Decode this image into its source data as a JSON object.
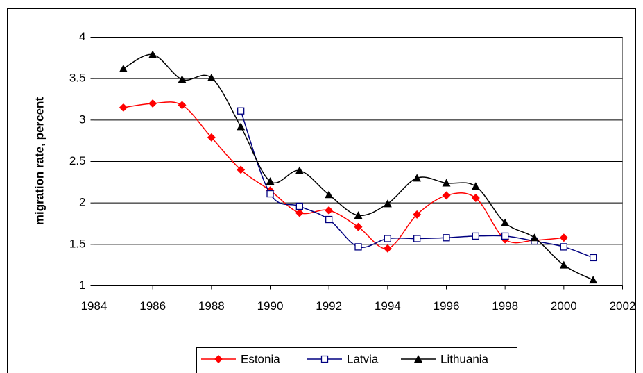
{
  "chart_data": {
    "type": "line",
    "y_label": "migration rate, percent",
    "x": [
      1985,
      1986,
      1987,
      1988,
      1989,
      1990,
      1991,
      1992,
      1993,
      1994,
      1995,
      1996,
      1997,
      1998,
      1999,
      2000,
      2001
    ],
    "series": [
      {
        "name": "Estonia",
        "color": "#ff0000",
        "marker": "diamond",
        "values": [
          3.15,
          3.2,
          3.18,
          2.79,
          2.4,
          2.15,
          1.88,
          1.91,
          1.71,
          1.45,
          1.86,
          2.09,
          2.06,
          1.56,
          1.55,
          1.58,
          null
        ]
      },
      {
        "name": "Latvia",
        "color": "#000080",
        "marker": "square",
        "values": [
          null,
          null,
          null,
          null,
          3.11,
          2.11,
          1.96,
          1.8,
          1.47,
          1.57,
          1.57,
          1.58,
          1.6,
          1.6,
          1.54,
          1.47,
          1.34
        ]
      },
      {
        "name": "Lithuania",
        "color": "#000000",
        "marker": "triangle",
        "values": [
          3.62,
          3.79,
          3.49,
          3.51,
          2.92,
          2.26,
          2.39,
          2.1,
          1.85,
          1.99,
          2.3,
          2.24,
          2.2,
          1.76,
          1.58,
          1.25,
          1.07
        ]
      }
    ],
    "xlim": [
      1984,
      2002
    ],
    "xticks": [
      1984,
      1986,
      1988,
      1990,
      1992,
      1994,
      1996,
      1998,
      2000,
      2002
    ],
    "ylim": [
      1,
      4
    ],
    "yticks": [
      1,
      1.5,
      2,
      2.5,
      3,
      3.5,
      4
    ],
    "grid": true,
    "legend": "bottom"
  }
}
